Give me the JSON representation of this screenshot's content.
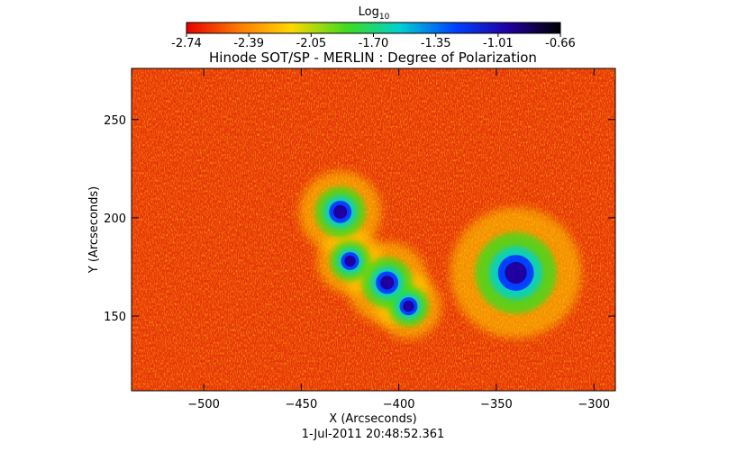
{
  "chart_data": {
    "type": "heatmap",
    "title": "Hinode SOT/SP - MERLIN : Degree of Polarization",
    "xlabel": "X (Arcseconds)",
    "ylabel": "Y (Arcseconds)",
    "xlim": [
      -537,
      -289
    ],
    "ylim": [
      112,
      276
    ],
    "x_ticks": [
      -500,
      -450,
      -400,
      -350,
      -300
    ],
    "y_ticks": [
      150,
      200,
      250
    ],
    "timestamp": "1-Jul-2011 20:48:52.361",
    "colorbar": {
      "label": "Log",
      "label_subscript": "10",
      "range": [
        -2.74,
        -0.66
      ],
      "ticks": [
        "-2.74",
        "-2.39",
        "-2.05",
        "-1.70",
        "-1.35",
        "-1.01",
        "-0.66"
      ],
      "colormap": [
        "#e60000",
        "#ff7a00",
        "#ffd700",
        "#3ddc1e",
        "#00d0d0",
        "#0040ff",
        "#2000a0",
        "#000000"
      ]
    },
    "features": [
      {
        "name": "",
        "x": -340,
        "y": 172,
        "radius": 8,
        "value": -0.9
      },
      {
        "name": "",
        "x": -425,
        "y": 178,
        "radius": 4,
        "value": -1.0
      },
      {
        "name": "",
        "x": -406,
        "y": 167,
        "radius": 5,
        "value": -1.0
      },
      {
        "name": "",
        "x": -430,
        "y": 203,
        "radius": 5,
        "value": -1.1
      },
      {
        "name": "",
        "x": -395,
        "y": 155,
        "radius": 4,
        "value": -1.1
      }
    ]
  }
}
